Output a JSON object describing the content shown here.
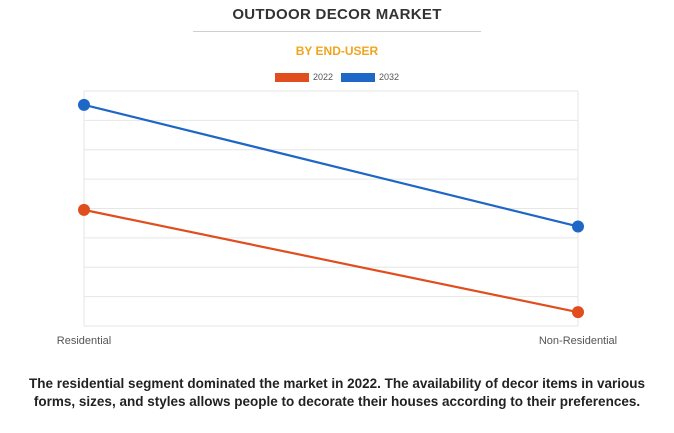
{
  "header": {
    "title": "OUTDOOR DECOR MARKET",
    "subtitle": "BY END-USER"
  },
  "caption": "The residential segment dominated the market in 2022. The availability of decor items in various forms, sizes, and styles allows people to decorate their houses according to their preferences.",
  "colors": {
    "series_2022": "#e04e1e",
    "series_2032": "#1f67c6",
    "subtitle": "#f0a51e",
    "grid": "#e6e6e6"
  },
  "chart_data": {
    "type": "line",
    "title": "OUTDOOR DECOR MARKET",
    "subtitle": "BY END-USER",
    "categories": [
      "Residential",
      "Non-Residential"
    ],
    "series": [
      {
        "name": "2022",
        "values": [
          4.2,
          0.5
        ]
      },
      {
        "name": "2032",
        "values": [
          8.0,
          3.6
        ]
      }
    ],
    "ylim": [
      0,
      8.5
    ],
    "grid": true,
    "legend": "top-center",
    "xlabel": "",
    "ylabel": ""
  }
}
